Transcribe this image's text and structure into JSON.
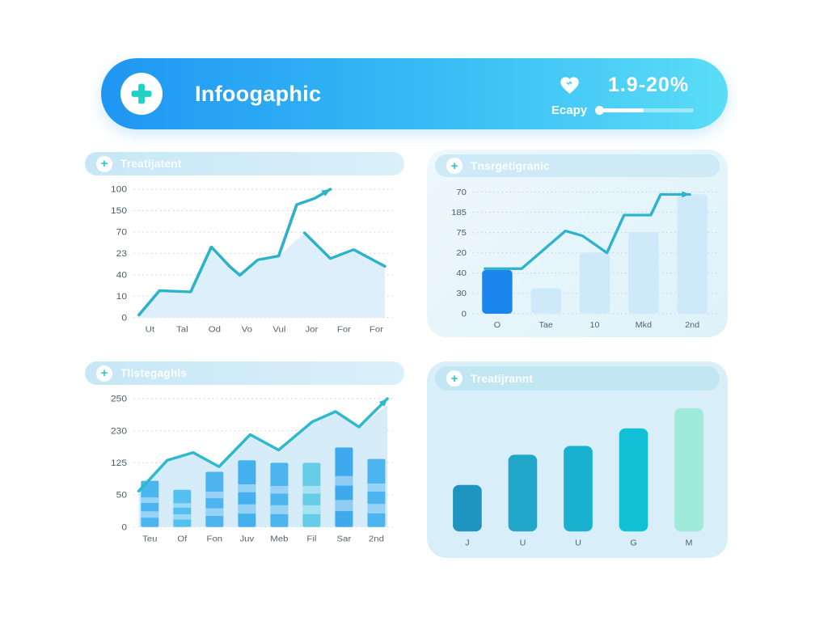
{
  "banner": {
    "title": "Infoogaphic",
    "stat_value": "1.9-20%",
    "stat_label": "Ecapy",
    "progress_percent": 48,
    "colors": {
      "gradient_left": "#1e96f3",
      "gradient_right": "#5addf6",
      "cross": "#1fd2c5",
      "heart": "#ffffff"
    }
  },
  "chart_data": [
    {
      "type": "area",
      "position": "top-left",
      "title": "Treatijatent",
      "yticks": [
        "100",
        "150",
        "70",
        "23",
        "40",
        "10",
        "0"
      ],
      "xticks": [
        "Ut",
        "Tal",
        "Od",
        "Vo",
        "Vul",
        "Jor",
        "For",
        "For"
      ],
      "grid": true,
      "area_color": "#ddeffa",
      "line_color": "#2eb2c9",
      "area": [
        [
          0.02,
          0.02
        ],
        [
          0.1,
          0.2
        ],
        [
          0.22,
          0.2
        ],
        [
          0.3,
          0.52
        ],
        [
          0.4,
          0.33
        ],
        [
          0.5,
          0.45
        ],
        [
          0.56,
          0.48
        ],
        [
          0.66,
          0.66
        ],
        [
          0.76,
          0.46
        ],
        [
          0.85,
          0.53
        ],
        [
          0.97,
          0.4
        ]
      ],
      "lines": [
        {
          "points": [
            [
              0.02,
              0.02
            ],
            [
              0.1,
              0.21
            ],
            [
              0.22,
              0.2
            ],
            [
              0.3,
              0.55
            ],
            [
              0.37,
              0.4
            ],
            [
              0.41,
              0.33
            ],
            [
              0.48,
              0.45
            ],
            [
              0.56,
              0.48
            ],
            [
              0.63,
              0.88
            ],
            [
              0.7,
              0.93
            ],
            [
              0.76,
              1.0
            ]
          ],
          "arrow": true
        },
        {
          "points": [
            [
              0.66,
              0.66
            ],
            [
              0.76,
              0.46
            ],
            [
              0.85,
              0.53
            ],
            [
              0.97,
              0.4
            ]
          ],
          "arrow": false
        }
      ]
    },
    {
      "type": "bar",
      "position": "top-right",
      "title": "Tnsrgetigranic",
      "yticks": [
        "70",
        "185",
        "75",
        "20",
        "40",
        "30",
        "0"
      ],
      "xticks": [
        "O",
        "Tae",
        "10",
        "Mkd",
        "2nd"
      ],
      "grid": true,
      "bars": [
        0.36,
        0.21,
        0.5,
        0.67,
        0.98
      ],
      "bar_colors": [
        "#1b86ee",
        "#cee9fa",
        "#cee9fa",
        "#cee9fa",
        "#cee9fa"
      ],
      "bar_width": 0.62,
      "bar_radius": 5,
      "line_color": "#2fb3cb",
      "lines": [
        {
          "points": [
            [
              0.05,
              0.37
            ],
            [
              0.2,
              0.37
            ],
            [
              0.38,
              0.68
            ],
            [
              0.45,
              0.64
            ],
            [
              0.55,
              0.5
            ],
            [
              0.62,
              0.81
            ],
            [
              0.73,
              0.81
            ],
            [
              0.77,
              0.98
            ],
            [
              0.89,
              0.98
            ]
          ],
          "arrow": true
        }
      ]
    },
    {
      "type": "bar",
      "position": "bottom-left",
      "title": "Tllstegaghls",
      "yticks": [
        "250",
        "230",
        "125",
        "50",
        "0"
      ],
      "xticks": [
        "Teu",
        "Of",
        "Fon",
        "Juv",
        "Meb",
        "Fil",
        "Sar",
        "2nd"
      ],
      "grid": true,
      "area_color": "#d7ecf9",
      "area": [
        [
          0.02,
          0.28
        ],
        [
          0.13,
          0.52
        ],
        [
          0.23,
          0.58
        ],
        [
          0.33,
          0.47
        ],
        [
          0.45,
          0.72
        ],
        [
          0.56,
          0.6
        ],
        [
          0.69,
          0.82
        ],
        [
          0.78,
          0.9
        ],
        [
          0.87,
          0.78
        ],
        [
          0.98,
          0.95
        ]
      ],
      "bars": [
        0.36,
        0.29,
        0.43,
        0.52,
        0.5,
        0.5,
        0.62,
        0.53
      ],
      "bar_colors": [
        "#4cb4ef",
        "#54c0f0",
        "#4cb4ef",
        "#45b0ee",
        "#4cb4ef",
        "#66cde9",
        "#3fa9ed",
        "#4cb4ef"
      ],
      "bar_bands": [
        [
          0.2,
          0.34
        ],
        [
          0.52,
          0.64
        ]
      ],
      "bar_width": 0.55,
      "bar_radius": 2,
      "line_color": "#2fb9cd",
      "lines": [
        {
          "points": [
            [
              0.02,
              0.28
            ],
            [
              0.13,
              0.52
            ],
            [
              0.23,
              0.58
            ],
            [
              0.33,
              0.47
            ],
            [
              0.45,
              0.72
            ],
            [
              0.56,
              0.6
            ],
            [
              0.69,
              0.82
            ],
            [
              0.78,
              0.9
            ],
            [
              0.87,
              0.78
            ],
            [
              0.98,
              1.0
            ]
          ],
          "arrow": true
        }
      ]
    },
    {
      "type": "bar",
      "position": "bottom-right",
      "title": "Treatijrannt",
      "yticks": null,
      "xticks": [
        "J",
        "U",
        "U",
        "G",
        "M"
      ],
      "grid": false,
      "bars": [
        0.37,
        0.61,
        0.68,
        0.82,
        0.98
      ],
      "bar_colors": [
        "#1d95c0",
        "#21a7c9",
        "#18b1cf",
        "#12c0d6",
        "#9fead9"
      ],
      "bar_width": 0.52,
      "bar_radius": 8
    }
  ]
}
